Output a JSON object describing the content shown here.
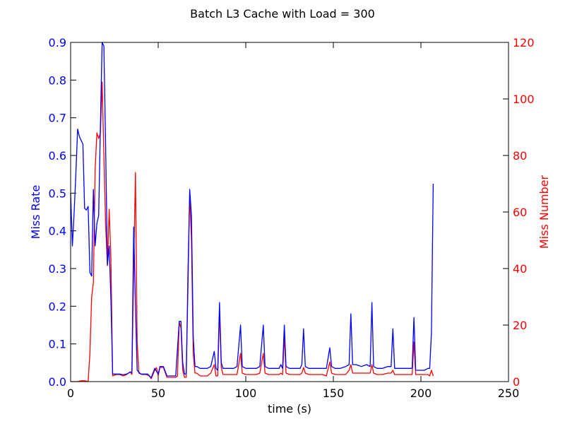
{
  "chart_data": {
    "type": "line",
    "title": "Batch L3 Cache with Load = 300",
    "xlabel": "time (s)",
    "ylabel_left": "Miss Rate",
    "ylabel_right": "Miss Number",
    "xlim": [
      0,
      250
    ],
    "ylim_left": [
      0,
      0.9
    ],
    "ylim_right": [
      0,
      120
    ],
    "x_ticks": [
      0,
      50,
      100,
      150,
      200,
      250
    ],
    "y_left_ticks": [
      "0.0",
      "0.1",
      "0.2",
      "0.3",
      "0.4",
      "0.5",
      "0.6",
      "0.7",
      "0.8",
      "0.9"
    ],
    "y_right_ticks": [
      "0",
      "20",
      "40",
      "60",
      "80",
      "100",
      "120"
    ],
    "grid": false,
    "colors": {
      "miss_rate": "#0000ff",
      "miss_number": "#ff0000",
      "axes": "#000000"
    },
    "series": [
      {
        "axis": "left",
        "points": [
          [
            0,
            0.5
          ],
          [
            1,
            0.36
          ],
          [
            2,
            0.45
          ],
          [
            3,
            0.55
          ],
          [
            4,
            0.67
          ],
          [
            5,
            0.65
          ],
          [
            6,
            0.64
          ],
          [
            7,
            0.63
          ],
          [
            8,
            0.46
          ],
          [
            9,
            0.455
          ],
          [
            10,
            0.465
          ],
          [
            11,
            0.29
          ],
          [
            12,
            0.28
          ],
          [
            13,
            0.51
          ],
          [
            14,
            0.36
          ],
          [
            15,
            0.42
          ],
          [
            16,
            0.44
          ],
          [
            17,
            0.68
          ],
          [
            18,
            0.9
          ],
          [
            19,
            0.89
          ],
          [
            20,
            0.62
          ],
          [
            21,
            0.31
          ],
          [
            22,
            0.36
          ],
          [
            23,
            0.22
          ],
          [
            24,
            0.02
          ],
          [
            26,
            0.02
          ],
          [
            28,
            0.02
          ],
          [
            30,
            0.018
          ],
          [
            32,
            0.02
          ],
          [
            34,
            0.025
          ],
          [
            35,
            0.025
          ],
          [
            36,
            0.41
          ],
          [
            37,
            0.2
          ],
          [
            38,
            0.03
          ],
          [
            40,
            0.02
          ],
          [
            42,
            0.02
          ],
          [
            44,
            0.02
          ],
          [
            46,
            0.01
          ],
          [
            48,
            0.035
          ],
          [
            50,
            0.02
          ],
          [
            51,
            0.04
          ],
          [
            53,
            0.04
          ],
          [
            55,
            0.015
          ],
          [
            58,
            0.015
          ],
          [
            60,
            0.015
          ],
          [
            62,
            0.16
          ],
          [
            63,
            0.16
          ],
          [
            64,
            0.05
          ],
          [
            65,
            0.02
          ],
          [
            66,
            0.02
          ],
          [
            67,
            0.26
          ],
          [
            68,
            0.51
          ],
          [
            69,
            0.44
          ],
          [
            70,
            0.12
          ],
          [
            71,
            0.04
          ],
          [
            72,
            0.04
          ],
          [
            74,
            0.035
          ],
          [
            76,
            0.035
          ],
          [
            78,
            0.035
          ],
          [
            80,
            0.04
          ],
          [
            82,
            0.08
          ],
          [
            83,
            0.035
          ],
          [
            84,
            0.03
          ],
          [
            85,
            0.21
          ],
          [
            86,
            0.05
          ],
          [
            87,
            0.035
          ],
          [
            89,
            0.035
          ],
          [
            91,
            0.035
          ],
          [
            93,
            0.035
          ],
          [
            95,
            0.04
          ],
          [
            97,
            0.15
          ],
          [
            98,
            0.04
          ],
          [
            100,
            0.035
          ],
          [
            103,
            0.035
          ],
          [
            106,
            0.035
          ],
          [
            108,
            0.04
          ],
          [
            110,
            0.15
          ],
          [
            111,
            0.04
          ],
          [
            113,
            0.035
          ],
          [
            116,
            0.035
          ],
          [
            119,
            0.035
          ],
          [
            120,
            0.045
          ],
          [
            121,
            0.035
          ],
          [
            122,
            0.15
          ],
          [
            123,
            0.04
          ],
          [
            125,
            0.035
          ],
          [
            128,
            0.035
          ],
          [
            131,
            0.035
          ],
          [
            132,
            0.045
          ],
          [
            133,
            0.14
          ],
          [
            134,
            0.04
          ],
          [
            136,
            0.035
          ],
          [
            139,
            0.035
          ],
          [
            142,
            0.035
          ],
          [
            144,
            0.035
          ],
          [
            146,
            0.035
          ],
          [
            148,
            0.09
          ],
          [
            149,
            0.04
          ],
          [
            151,
            0.035
          ],
          [
            154,
            0.035
          ],
          [
            157,
            0.04
          ],
          [
            159,
            0.045
          ],
          [
            160,
            0.18
          ],
          [
            161,
            0.045
          ],
          [
            163,
            0.045
          ],
          [
            166,
            0.04
          ],
          [
            169,
            0.045
          ],
          [
            171,
            0.04
          ],
          [
            172,
            0.21
          ],
          [
            173,
            0.04
          ],
          [
            175,
            0.035
          ],
          [
            178,
            0.035
          ],
          [
            181,
            0.04
          ],
          [
            183,
            0.04
          ],
          [
            184,
            0.14
          ],
          [
            185,
            0.035
          ],
          [
            188,
            0.035
          ],
          [
            191,
            0.035
          ],
          [
            194,
            0.035
          ],
          [
            195,
            0.035
          ],
          [
            196,
            0.17
          ],
          [
            197,
            0.03
          ],
          [
            199,
            0.03
          ],
          [
            202,
            0.03
          ],
          [
            204,
            0.035
          ],
          [
            205,
            0.035
          ],
          [
            206,
            0.13
          ],
          [
            207,
            0.525
          ]
        ]
      },
      {
        "axis": "right",
        "points": [
          [
            0,
            0
          ],
          [
            4,
            0
          ],
          [
            6,
            0.3
          ],
          [
            8,
            0.3
          ],
          [
            10,
            0
          ],
          [
            11,
            10
          ],
          [
            12,
            30
          ],
          [
            13,
            35
          ],
          [
            14,
            75
          ],
          [
            15,
            88
          ],
          [
            16,
            86
          ],
          [
            17,
            88
          ],
          [
            18,
            106
          ],
          [
            19,
            80
          ],
          [
            20,
            55
          ],
          [
            21,
            41
          ],
          [
            22,
            61
          ],
          [
            23,
            44
          ],
          [
            24,
            2
          ],
          [
            26,
            2.5
          ],
          [
            28,
            2.5
          ],
          [
            30,
            2
          ],
          [
            32,
            2.5
          ],
          [
            34,
            3.5
          ],
          [
            35,
            2.5
          ],
          [
            36,
            40
          ],
          [
            37,
            74
          ],
          [
            38,
            14
          ],
          [
            39,
            3
          ],
          [
            41,
            2.5
          ],
          [
            43,
            2.5
          ],
          [
            45,
            2
          ],
          [
            46,
            1
          ],
          [
            48,
            4
          ],
          [
            49,
            5
          ],
          [
            50,
            2
          ],
          [
            51,
            5
          ],
          [
            53,
            5
          ],
          [
            55,
            1.5
          ],
          [
            58,
            1.5
          ],
          [
            60,
            1.5
          ],
          [
            61,
            2
          ],
          [
            62,
            21
          ],
          [
            63,
            19
          ],
          [
            64,
            4
          ],
          [
            65,
            1.5
          ],
          [
            66,
            1.5
          ],
          [
            67,
            40
          ],
          [
            68,
            66
          ],
          [
            69,
            50
          ],
          [
            70,
            10
          ],
          [
            71,
            3
          ],
          [
            72,
            3
          ],
          [
            74,
            2
          ],
          [
            76,
            2
          ],
          [
            78,
            2
          ],
          [
            80,
            3
          ],
          [
            82,
            6
          ],
          [
            83,
            2
          ],
          [
            84,
            2
          ],
          [
            85,
            25
          ],
          [
            86,
            5
          ],
          [
            87,
            2.5
          ],
          [
            89,
            2.5
          ],
          [
            91,
            2.5
          ],
          [
            93,
            2.5
          ],
          [
            95,
            2.5
          ],
          [
            97,
            10
          ],
          [
            98,
            3
          ],
          [
            100,
            2.5
          ],
          [
            103,
            2.5
          ],
          [
            106,
            2.5
          ],
          [
            108,
            3
          ],
          [
            110,
            10
          ],
          [
            111,
            3
          ],
          [
            113,
            2.5
          ],
          [
            116,
            2.5
          ],
          [
            119,
            2.5
          ],
          [
            120,
            3
          ],
          [
            121,
            2.5
          ],
          [
            122,
            16
          ],
          [
            123,
            3
          ],
          [
            125,
            2.5
          ],
          [
            128,
            2.5
          ],
          [
            131,
            2.5
          ],
          [
            132,
            3
          ],
          [
            133,
            5
          ],
          [
            134,
            3
          ],
          [
            136,
            2.5
          ],
          [
            139,
            2.5
          ],
          [
            142,
            2.5
          ],
          [
            144,
            2.5
          ],
          [
            146,
            2
          ],
          [
            148,
            7
          ],
          [
            149,
            3
          ],
          [
            151,
            2.5
          ],
          [
            154,
            2.5
          ],
          [
            157,
            2.5
          ],
          [
            159,
            4
          ],
          [
            160,
            6
          ],
          [
            161,
            3
          ],
          [
            163,
            3
          ],
          [
            166,
            3
          ],
          [
            169,
            3
          ],
          [
            171,
            3
          ],
          [
            172,
            6
          ],
          [
            173,
            3
          ],
          [
            175,
            2.5
          ],
          [
            178,
            2.5
          ],
          [
            181,
            3
          ],
          [
            183,
            3
          ],
          [
            184,
            4
          ],
          [
            185,
            2.5
          ],
          [
            188,
            2.5
          ],
          [
            191,
            2.5
          ],
          [
            194,
            2.5
          ],
          [
            195,
            2.5
          ],
          [
            196,
            14
          ],
          [
            197,
            2.5
          ],
          [
            199,
            2.5
          ],
          [
            202,
            2.5
          ],
          [
            204,
            2.5
          ],
          [
            205,
            2
          ],
          [
            206,
            4
          ],
          [
            207,
            2
          ]
        ]
      }
    ]
  }
}
